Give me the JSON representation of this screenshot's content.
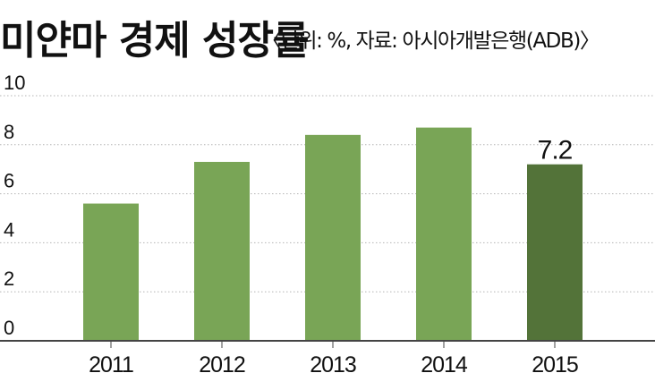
{
  "chart_data": {
    "type": "bar",
    "title": "미얀마 경제 성장률",
    "subtitle": "〈단위: %, 자료: 아시아개발은행(ADB)〉",
    "categories": [
      "2011",
      "2012",
      "2013",
      "2014",
      "2015"
    ],
    "values": [
      5.6,
      7.3,
      8.4,
      8.7,
      7.2
    ],
    "data_labels": [
      {
        "category_index": 4,
        "text": "7.2"
      }
    ],
    "yticks": [
      "0",
      "2",
      "4",
      "6",
      "8",
      "10"
    ],
    "ylim": [
      0,
      10
    ],
    "xlabel": "",
    "ylabel": "",
    "grid": true,
    "legend": "none",
    "colors": {
      "bar": "#79a556",
      "highlight_bar": "#537339",
      "grid": "#b4b4b4",
      "axis": "#444444"
    },
    "highlight_index": 4
  }
}
